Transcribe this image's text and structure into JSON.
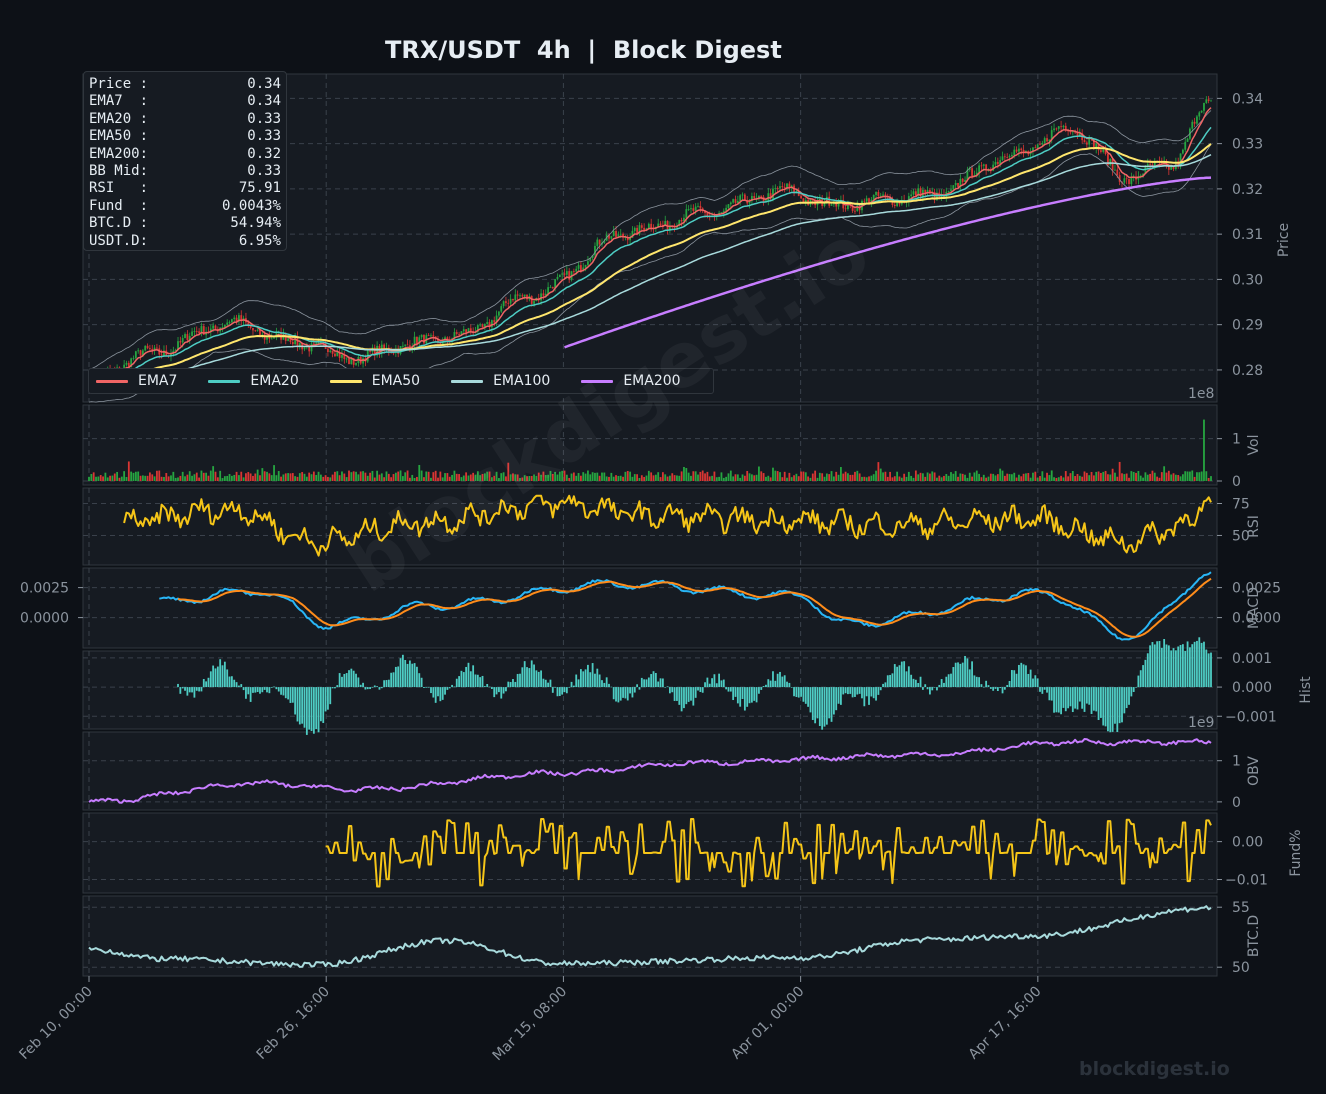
{
  "title": "TRX/USDT  4h  |  Block Digest",
  "watermark": "blockdigest.io",
  "info_box": [
    {
      "label": "Price :",
      "value": "0.34"
    },
    {
      "label": "EMA7  :",
      "value": "0.34"
    },
    {
      "label": "EMA20 :",
      "value": "0.33"
    },
    {
      "label": "EMA50 :",
      "value": "0.33"
    },
    {
      "label": "EMA200:",
      "value": "0.32"
    },
    {
      "label": "BB Mid:",
      "value": "0.33"
    },
    {
      "label": "RSI   :",
      "value": "75.91"
    },
    {
      "label": "Fund  :",
      "value": "0.0043%"
    },
    {
      "label": "BTC.D :",
      "value": "54.94%"
    },
    {
      "label": "USDT.D:",
      "value": "6.95%"
    }
  ],
  "colors": {
    "background": "#0d1117",
    "panel": "#161b22",
    "grid": "#3a414b",
    "text": "#e6edf3",
    "axis_text": "#8b949e",
    "ema7": "#f06565",
    "ema20": "#4ecdc4",
    "ema50": "#ffe66d",
    "ema100": "#a8dadc",
    "ema200": "#c77dff",
    "up": "#26a641",
    "down": "#da3633",
    "rsi": "#f5c518",
    "macd": "#29b6f6",
    "signal": "#ff8c1a",
    "hist": "#4ecdc4",
    "obv": "#c77dff",
    "fund": "#f5c518",
    "btcd": "#a8dadc"
  },
  "chart_data": [
    {
      "panel": "price",
      "type": "candlestick",
      "ylabel": "Price",
      "ylim": [
        0.2738,
        0.3445
      ],
      "yticks": [
        "0.28",
        "0.29",
        "0.30",
        "0.31",
        "0.32",
        "0.33",
        "0.34"
      ],
      "x_range": [
        "Feb 10, 00:00",
        "Apr 29, 20:00"
      ],
      "timeframe": "4h",
      "bars": 480,
      "price_path": [
        [
          "Feb 10, 00:00",
          0.2775
        ],
        [
          "Feb 14, 00:00",
          0.2835
        ],
        [
          "Feb 20, 00:00",
          0.2905
        ],
        [
          "Feb 24, 00:00",
          0.2865
        ],
        [
          "Mar 01, 00:00",
          0.2825
        ],
        [
          "Mar 04, 00:00",
          0.2855
        ],
        [
          "Mar 08, 00:00",
          0.2875
        ],
        [
          "Mar 13, 00:00",
          0.2965
        ],
        [
          "Mar 20, 00:00",
          0.3105
        ],
        [
          "Mar 25, 00:00",
          0.3145
        ],
        [
          "Mar 31, 00:00",
          0.3195
        ],
        [
          "Apr 03, 00:00",
          0.3165
        ],
        [
          "Apr 10, 00:00",
          0.3185
        ],
        [
          "Apr 16, 00:00",
          0.3275
        ],
        [
          "Apr 20, 00:00",
          0.3335
        ],
        [
          "Apr 24, 00:00",
          0.3225
        ],
        [
          "Apr 27, 00:00",
          0.3255
        ],
        [
          "Apr 29, 20:00",
          0.3395
        ]
      ],
      "emas": [
        {
          "name": "EMA7",
          "last": 0.338
        },
        {
          "name": "EMA20",
          "last": 0.3325
        },
        {
          "name": "EMA50",
          "last": 0.3295
        },
        {
          "name": "EMA100",
          "last": 0.327
        },
        {
          "name": "EMA200",
          "last": 0.3225
        }
      ],
      "ema200_start": [
        "Mar 15, 08:00",
        0.285
      ],
      "legend": [
        "EMA7",
        "EMA20",
        "EMA50",
        "EMA100",
        "EMA200"
      ],
      "legend_position": "lower-left"
    },
    {
      "panel": "volume",
      "type": "bar",
      "ylabel": "Vol",
      "yticks": [
        "0",
        "1"
      ],
      "exponent": "1e8",
      "ylim": [
        0,
        1.7
      ],
      "typical": 0.2,
      "spike": [
        "Apr 29, 00:00",
        1.45
      ]
    },
    {
      "panel": "rsi",
      "type": "line",
      "ylabel": "RSI",
      "yticks": [
        "50",
        "75"
      ],
      "ylim": [
        30,
        84
      ],
      "path": [
        [
          "Feb 12, 00:00",
          60
        ],
        [
          "Feb 20, 00:00",
          70
        ],
        [
          "Feb 26, 00:00",
          45
        ],
        [
          "Mar 05, 00:00",
          60
        ],
        [
          "Mar 15, 00:00",
          75
        ],
        [
          "Mar 22, 00:00",
          65
        ],
        [
          "Mar 30, 00:00",
          62
        ],
        [
          "Apr 07, 00:00",
          58
        ],
        [
          "Apr 17, 00:00",
          63
        ],
        [
          "Apr 24, 00:00",
          45
        ],
        [
          "Apr 27, 00:00",
          55
        ],
        [
          "Apr 29, 20:00",
          75.91
        ]
      ]
    },
    {
      "panel": "macd",
      "type": "line",
      "ylabel": "MACD",
      "yticks": [
        "0.0000",
        "0.0025"
      ],
      "ylim": [
        -0.0022,
        0.0038
      ],
      "series": [
        {
          "name": "MACD",
          "path": [
            [
              "Feb 14, 00:00",
              0.0012
            ],
            [
              "Feb 22, 00:00",
              0.0022
            ],
            [
              "Feb 27, 00:00",
              -0.0006
            ],
            [
              "Mar 06, 00:00",
              0.001
            ],
            [
              "Mar 19, 00:00",
              0.0028
            ],
            [
              "Apr 01, 00:00",
              0.0018
            ],
            [
              "Apr 04, 00:00",
              -0.0005
            ],
            [
              "Apr 18, 00:00",
              0.002
            ],
            [
              "Apr 24, 00:00",
              -0.0015
            ],
            [
              "Apr 29, 20:00",
              0.0035
            ]
          ]
        },
        {
          "name": "Signal",
          "lag": 3
        }
      ]
    },
    {
      "panel": "hist",
      "type": "bar",
      "ylabel": "Hist",
      "yticks": [
        "−0.001",
        "0.000",
        "0.001"
      ],
      "ylim": [
        -0.0013,
        0.0011
      ]
    },
    {
      "panel": "obv",
      "type": "line",
      "ylabel": "OBV",
      "yticks": [
        "0",
        "1"
      ],
      "exponent": "1e9",
      "ylim": [
        -0.1,
        1.6
      ],
      "path": [
        [
          "Feb 10, 00:00",
          0.0
        ],
        [
          "Feb 22, 00:00",
          0.45
        ],
        [
          "Mar 01, 00:00",
          0.3
        ],
        [
          "Mar 15, 00:00",
          0.7
        ],
        [
          "Mar 25, 00:00",
          0.95
        ],
        [
          "Apr 10, 00:00",
          1.15
        ],
        [
          "Apr 20, 00:00",
          1.45
        ],
        [
          "Apr 29, 20:00",
          1.45
        ]
      ]
    },
    {
      "panel": "funding",
      "type": "line",
      "ylabel": "Fund%",
      "yticks": [
        "−0.01",
        "0.00"
      ],
      "ylim": [
        -0.0125,
        0.0065
      ],
      "start": "Feb 26, 16:00",
      "range": [
        -0.012,
        0.006
      ],
      "last": 0.0043
    },
    {
      "panel": "btcd",
      "type": "line",
      "ylabel": "BTC.D",
      "yticks": [
        "50",
        "55"
      ],
      "ylim": [
        49.6,
        55.6
      ],
      "path": [
        [
          "Feb 10, 00:00",
          51.5
        ],
        [
          "Feb 15, 00:00",
          50.7
        ],
        [
          "Feb 26, 00:00",
          50.2
        ],
        [
          "Mar 07, 00:00",
          52.2
        ],
        [
          "Mar 15, 00:00",
          50.3
        ],
        [
          "Apr 01, 00:00",
          50.8
        ],
        [
          "Apr 10, 00:00",
          52.3
        ],
        [
          "Apr 17, 00:00",
          52.6
        ],
        [
          "Apr 29, 20:00",
          54.94
        ]
      ]
    }
  ],
  "xticks": [
    "Feb 10, 00:00",
    "Feb 26, 16:00",
    "Mar 15, 08:00",
    "Apr 01, 00:00",
    "Apr 17, 16:00"
  ]
}
